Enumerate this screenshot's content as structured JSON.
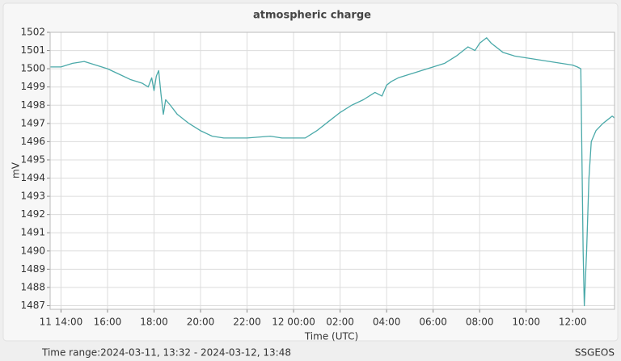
{
  "chart_data": {
    "type": "line",
    "title": "atmospheric charge",
    "y_label": "mV",
    "x_label": "Time (UTC)",
    "time_range": "Time range:2024-03-11, 13:32 - 2024-03-12, 13:48",
    "source": "SSGEOS",
    "color": "#4aa9a9",
    "grid": true,
    "xlim": [
      13.533,
      37.8
    ],
    "ylim": [
      1486.8,
      1502
    ],
    "yticks": [
      1487,
      1488,
      1489,
      1490,
      1491,
      1492,
      1493,
      1494,
      1495,
      1496,
      1497,
      1498,
      1499,
      1500,
      1501,
      1502
    ],
    "xticks": [
      {
        "value": 14,
        "label": "11 14:00"
      },
      {
        "value": 16,
        "label": "16:00"
      },
      {
        "value": 18,
        "label": "18:00"
      },
      {
        "value": 20,
        "label": "20:00"
      },
      {
        "value": 22,
        "label": "22:00"
      },
      {
        "value": 24,
        "label": "12 00:00"
      },
      {
        "value": 26,
        "label": "02:00"
      },
      {
        "value": 28,
        "label": "04:00"
      },
      {
        "value": 30,
        "label": "06:00"
      },
      {
        "value": 32,
        "label": "08:00"
      },
      {
        "value": 34,
        "label": "10:00"
      },
      {
        "value": 36,
        "label": "12:00"
      }
    ],
    "x": [
      13.533,
      14.0,
      14.5,
      15.0,
      15.5,
      16.0,
      16.5,
      17.0,
      17.5,
      17.75,
      17.9,
      18.0,
      18.1,
      18.2,
      18.3,
      18.4,
      18.5,
      18.7,
      19.0,
      19.5,
      20.0,
      20.5,
      21.0,
      22.0,
      23.0,
      23.5,
      24.0,
      24.5,
      25.0,
      25.5,
      26.0,
      26.5,
      27.0,
      27.5,
      27.8,
      28.0,
      28.2,
      28.5,
      29.0,
      29.5,
      30.0,
      30.5,
      31.0,
      31.5,
      31.8,
      32.0,
      32.3,
      32.5,
      33.0,
      33.5,
      34.0,
      34.5,
      35.0,
      35.5,
      36.0,
      36.2,
      36.35,
      36.45,
      36.5,
      36.6,
      36.7,
      36.8,
      37.0,
      37.3,
      37.5,
      37.7,
      37.8
    ],
    "values": [
      1500.1,
      1500.1,
      1500.3,
      1500.4,
      1500.2,
      1500.0,
      1499.7,
      1499.4,
      1499.2,
      1499.0,
      1499.5,
      1498.8,
      1499.6,
      1499.9,
      1498.6,
      1497.5,
      1498.3,
      1498.0,
      1497.5,
      1497.0,
      1496.6,
      1496.3,
      1496.2,
      1496.2,
      1496.3,
      1496.2,
      1496.2,
      1496.2,
      1496.6,
      1497.1,
      1497.6,
      1498.0,
      1498.3,
      1498.7,
      1498.5,
      1499.1,
      1499.3,
      1499.5,
      1499.7,
      1499.9,
      1500.1,
      1500.3,
      1500.7,
      1501.2,
      1501.0,
      1501.4,
      1501.7,
      1501.4,
      1500.9,
      1500.7,
      1500.6,
      1500.5,
      1500.4,
      1500.3,
      1500.2,
      1500.1,
      1500.0,
      1490,
      1487.0,
      1490,
      1494,
      1496,
      1496.6,
      1497.0,
      1497.2,
      1497.4,
      1497.3
    ]
  }
}
